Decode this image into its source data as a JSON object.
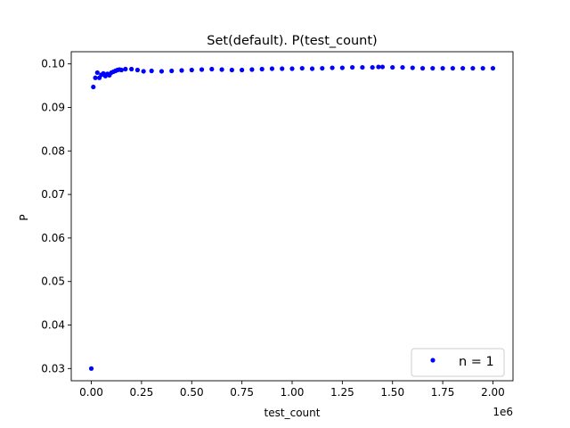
{
  "chart_data": {
    "type": "scatter",
    "title": "Set(default). P(test_count)",
    "xlabel": "test_count",
    "ylabel": "P",
    "x_offset_label": "1e6",
    "xlim": [
      -100000,
      2100000
    ],
    "ylim": [
      0.0272,
      0.1028
    ],
    "xticks": [
      {
        "value": 0,
        "label": "0.00"
      },
      {
        "value": 250000,
        "label": "0.25"
      },
      {
        "value": 500000,
        "label": "0.50"
      },
      {
        "value": 750000,
        "label": "0.75"
      },
      {
        "value": 1000000,
        "label": "1.00"
      },
      {
        "value": 1250000,
        "label": "1.25"
      },
      {
        "value": 1500000,
        "label": "1.50"
      },
      {
        "value": 1750000,
        "label": "1.75"
      },
      {
        "value": 2000000,
        "label": "2.00"
      }
    ],
    "yticks": [
      {
        "value": 0.03,
        "label": "0.03"
      },
      {
        "value": 0.04,
        "label": "0.04"
      },
      {
        "value": 0.05,
        "label": "0.05"
      },
      {
        "value": 0.06,
        "label": "0.06"
      },
      {
        "value": 0.07,
        "label": "0.07"
      },
      {
        "value": 0.08,
        "label": "0.08"
      },
      {
        "value": 0.09,
        "label": "0.09"
      },
      {
        "value": 0.1,
        "label": "0.10"
      }
    ],
    "grid": false,
    "legend_position": "lower right",
    "series": [
      {
        "name": "n = 1",
        "color": "#0000ff",
        "marker": "point",
        "x": [
          0,
          10000,
          20000,
          30000,
          40000,
          50000,
          60000,
          70000,
          80000,
          90000,
          100000,
          110000,
          120000,
          130000,
          140000,
          150000,
          170000,
          200000,
          230000,
          260000,
          300000,
          350000,
          400000,
          450000,
          500000,
          550000,
          600000,
          650000,
          700000,
          750000,
          800000,
          850000,
          900000,
          950000,
          1000000,
          1050000,
          1100000,
          1150000,
          1200000,
          1250000,
          1300000,
          1350000,
          1400000,
          1430000,
          1450000,
          1500000,
          1550000,
          1600000,
          1650000,
          1700000,
          1750000,
          1800000,
          1850000,
          1900000,
          1950000,
          2000000
        ],
        "y": [
          0.03,
          0.0947,
          0.0968,
          0.098,
          0.0968,
          0.0975,
          0.0978,
          0.0972,
          0.0977,
          0.0974,
          0.098,
          0.0982,
          0.0984,
          0.0986,
          0.0987,
          0.0986,
          0.0988,
          0.0988,
          0.0986,
          0.0983,
          0.0984,
          0.0983,
          0.0984,
          0.0985,
          0.0986,
          0.0987,
          0.0988,
          0.0987,
          0.0986,
          0.0986,
          0.0987,
          0.0988,
          0.0989,
          0.0989,
          0.0989,
          0.099,
          0.0989,
          0.099,
          0.0991,
          0.0991,
          0.0992,
          0.0992,
          0.0992,
          0.0993,
          0.0993,
          0.0992,
          0.0992,
          0.0991,
          0.099,
          0.099,
          0.099,
          0.099,
          0.099,
          0.099,
          0.099,
          0.099
        ]
      }
    ]
  }
}
